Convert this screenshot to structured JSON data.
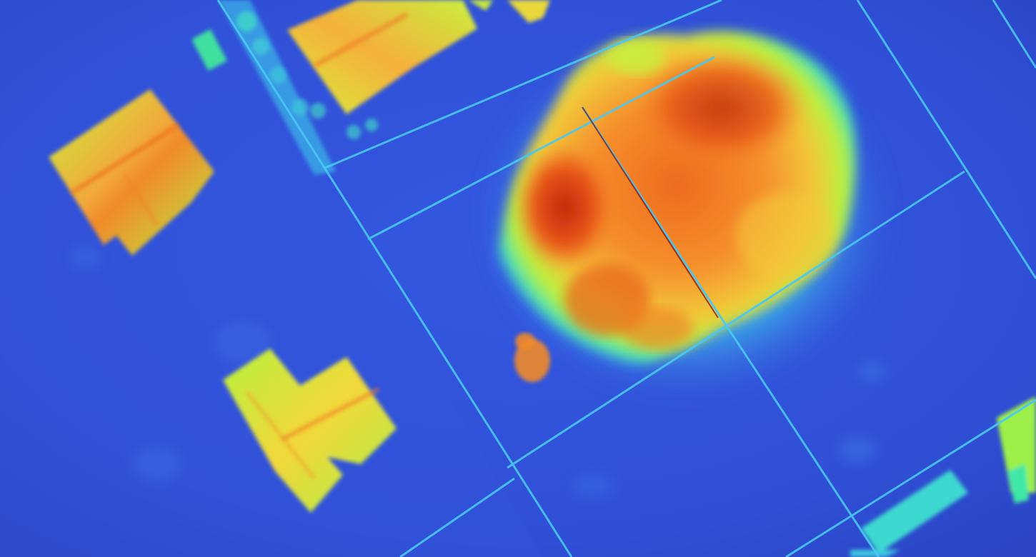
{
  "image": {
    "kind": "aerial height map (false-color elevation render)",
    "colormap": [
      "#2a3fc4",
      "#3a64e8",
      "#30a8f0",
      "#3fe0c8",
      "#b8f23a",
      "#f2e83a",
      "#f8a030",
      "#ee5a18",
      "#b81a0a"
    ],
    "background_color": "#2f4fd8",
    "objects": [
      {
        "name": "house-top-center",
        "type": "building"
      },
      {
        "name": "house-top-left",
        "type": "building"
      },
      {
        "name": "house-bottom-center",
        "type": "building"
      },
      {
        "name": "house-bottom-right",
        "type": "building"
      },
      {
        "name": "large-tree-canopy",
        "type": "vegetation"
      },
      {
        "name": "property-boundary-lines",
        "type": "overlay"
      }
    ]
  }
}
